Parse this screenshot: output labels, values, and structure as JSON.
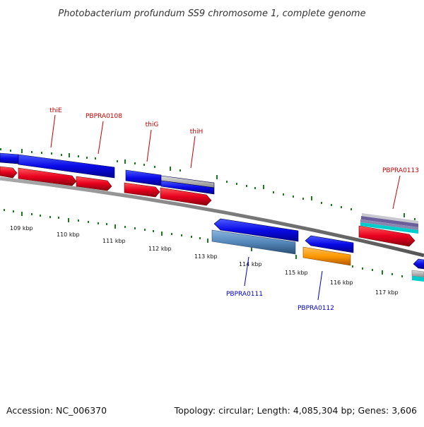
{
  "title": "Photobacterium profundum SS9 chromosome 1, complete genome",
  "footer": {
    "accession": "Accession: NC_006370",
    "summary": "Topology: circular; Length: 4,085,304 bp; Genes: 3,606"
  },
  "colors": {
    "background": "#ffffff",
    "backbone": "#808080",
    "tick": "#1e7a1e",
    "forward_label": "#cc0000",
    "reverse_label": "#0000cc",
    "gene_blue": "#0a0ae6",
    "gene_red": "#e8001e",
    "gene_steel": "#5588bb",
    "gene_orange": "#ff9900",
    "gene_gray": "#b0b0b0",
    "gene_purple": "#6a5f9a",
    "gene_cyan": "#00cccc"
  },
  "ticks": [
    {
      "label": "109 kbp"
    },
    {
      "label": "110 kbp"
    },
    {
      "label": "111 kbp"
    },
    {
      "label": "112 kbp"
    },
    {
      "label": "113 kbp"
    },
    {
      "label": "114 kbp"
    },
    {
      "label": "115 kbp"
    },
    {
      "label": "116 kbp"
    },
    {
      "label": "117 kbp"
    }
  ],
  "gene_labels": {
    "thiE": "thiE",
    "PBPRA0108": "PBPRA0108",
    "thiG": "thiG",
    "thiH": "thiH",
    "PBPRA0113": "PBPRA0113",
    "PBPRA0111": "PBPRA0111",
    "PBPRA0112": "PBPRA0112"
  }
}
